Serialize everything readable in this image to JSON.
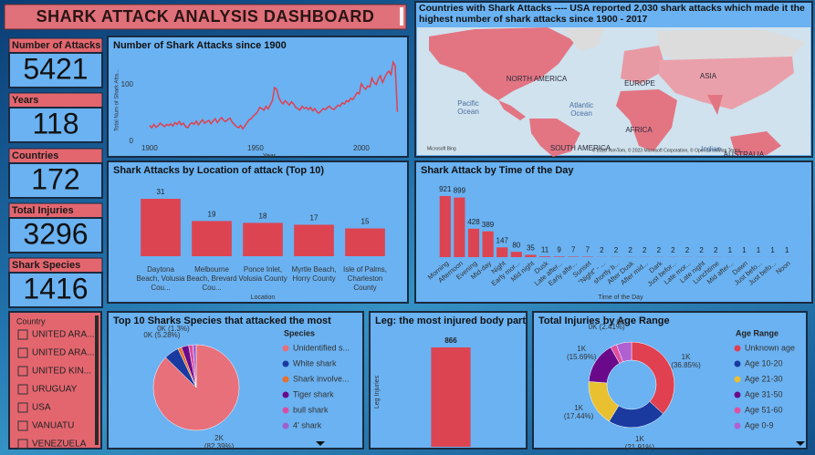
{
  "header": {
    "title": "SHARK ATTACK ANALYSIS DASHBOARD"
  },
  "kpis": [
    {
      "label": "Number of Attacks",
      "value": 5421
    },
    {
      "label": "Years",
      "value": 118
    },
    {
      "label": "Countries",
      "value": 172
    },
    {
      "label": "Total Injuries",
      "value": 3296
    },
    {
      "label": "Shark Species",
      "value": 1416
    }
  ],
  "slicer": {
    "title": "Country",
    "items": [
      "UNITED ARA...",
      "UNITED ARA...",
      "UNITED KIN...",
      "URUGUAY",
      "USA",
      "VANUATU",
      "VENEZUELA"
    ]
  },
  "map": {
    "title": "Countries with Shark Attacks ---- USA reported 2,030 shark attacks which made it the highest number of shark attacks since 1900 - 2017",
    "labels": [
      "NORTH AMERICA",
      "EUROPE",
      "ASIA",
      "AFRICA",
      "SOUTH AMERICA",
      "AUSTRALIA",
      "Pacific Ocean",
      "Atlantic Ocean",
      "Indian"
    ],
    "attribution": [
      "Microsoft Bing",
      "© 2023 TomTom, © 2023 Microsoft Corporation, © OpenStreetMap Terms"
    ]
  },
  "chart_data": [
    {
      "type": "line",
      "title": "Number of Shark Attacks since 1900",
      "x_label": "Year",
      "y_label": "Total Num of Shark Atta...",
      "color": "#e0404f",
      "x": [
        1900,
        1901,
        1902,
        1903,
        1904,
        1905,
        1906,
        1907,
        1908,
        1909,
        1910,
        1911,
        1912,
        1913,
        1914,
        1915,
        1916,
        1917,
        1918,
        1919,
        1920,
        1921,
        1922,
        1923,
        1924,
        1925,
        1926,
        1927,
        1928,
        1929,
        1930,
        1931,
        1932,
        1933,
        1934,
        1935,
        1936,
        1937,
        1938,
        1939,
        1940,
        1941,
        1942,
        1943,
        1944,
        1945,
        1946,
        1947,
        1948,
        1949,
        1950,
        1951,
        1952,
        1953,
        1954,
        1955,
        1956,
        1957,
        1958,
        1959,
        1960,
        1961,
        1962,
        1963,
        1964,
        1965,
        1966,
        1967,
        1968,
        1969,
        1970,
        1971,
        1972,
        1973,
        1974,
        1975,
        1976,
        1977,
        1978,
        1979,
        1980,
        1981,
        1982,
        1983,
        1984,
        1985,
        1986,
        1987,
        1988,
        1989,
        1990,
        1991,
        1992,
        1993,
        1994,
        1995,
        1996,
        1997,
        1998,
        1999,
        2000,
        2001,
        2002,
        2003,
        2004,
        2005,
        2006,
        2007,
        2008,
        2009,
        2010,
        2011,
        2012,
        2013,
        2014,
        2015,
        2016,
        2017
      ],
      "values": [
        28,
        24,
        30,
        25,
        27,
        32,
        29,
        26,
        30,
        28,
        31,
        27,
        33,
        30,
        35,
        29,
        32,
        26,
        24,
        30,
        33,
        30,
        36,
        29,
        34,
        38,
        32,
        35,
        37,
        31,
        36,
        40,
        33,
        38,
        42,
        37,
        35,
        39,
        41,
        34,
        30,
        26,
        24,
        28,
        22,
        27,
        33,
        38,
        40,
        45,
        48,
        52,
        60,
        58,
        55,
        62,
        57,
        65,
        72,
        95,
        92,
        78,
        70,
        66,
        72,
        68,
        64,
        70,
        66,
        60,
        58,
        55,
        62,
        58,
        60,
        56,
        60,
        54,
        58,
        52,
        50,
        54,
        58,
        56,
        60,
        62,
        58,
        56,
        60,
        64,
        62,
        68,
        66,
        72,
        70,
        76,
        74,
        80,
        86,
        84,
        102,
        96,
        92,
        98,
        96,
        112,
        104,
        100,
        110,
        116,
        104,
        112,
        120,
        124,
        118,
        140,
        134,
        52
      ],
      "xlim": [
        1894,
        2019
      ],
      "ylim": [
        0,
        145
      ],
      "xticks": [
        1900,
        1950,
        2000
      ],
      "yticks": [
        0,
        100
      ]
    },
    {
      "type": "bar",
      "title": "Shark Attacks by Location of attack (Top 10)",
      "x_label": "Location",
      "color": "#dd4452",
      "categories": [
        "Daytona Beach, Volusia Cou...",
        "Melbourne Beach, Brevard Cou...",
        "Ponce Inlet, Volusia County",
        "Myrtle Beach, Horry County",
        "Isle of Palms, Charleston County"
      ],
      "values": [
        31,
        19,
        18,
        17,
        15
      ]
    },
    {
      "type": "bar",
      "title": "Shark Attack by Time of the Day",
      "x_label": "Time of the Day",
      "color": "#dd4452",
      "categories": [
        "Morning",
        "Afternoon",
        "Evening",
        "Mid-day",
        "Night",
        "Early mor...",
        "Mid night",
        "Dusk",
        "Late after...",
        "Early afte...",
        "Sunset",
        "\"Night\" - ...",
        "shortly b...",
        "After Dusk",
        "After mid...",
        "Dark",
        "Just befor...",
        "Late mor...",
        "Late night",
        "Lunchtime",
        "Mid after...",
        "Dawn",
        "Just befo...",
        "Just befo...",
        "Noon"
      ],
      "values": [
        921,
        899,
        428,
        389,
        147,
        80,
        35,
        11,
        9,
        7,
        7,
        2,
        2,
        2,
        2,
        2,
        2,
        2,
        2,
        2,
        1,
        1,
        1,
        1,
        1
      ]
    },
    {
      "type": "pie",
      "title": "Top 10 Sharks Species that attacked the most",
      "legend_title": "Species",
      "categories": [
        "Unidentified s...",
        "White shark",
        "Shark involve...",
        "Tiger shark",
        "bull shark",
        "4' shark"
      ],
      "values": [
        82.39,
        5.28,
        1.3,
        2.6,
        1.5,
        1.2
      ],
      "value_labels": [
        "2K (82.39%)",
        "0K (5.28%)",
        "0K (1.3%)",
        null,
        null,
        null
      ],
      "colors": [
        "#e8707a",
        "#1a3aa0",
        "#e8702a",
        "#6a0a8a",
        "#d94fa0",
        "#a060d0"
      ]
    },
    {
      "type": "bar",
      "title": "Leg: the most injured body part",
      "y_label": "Leg Injuries",
      "color": "#dd4452",
      "values": [
        866
      ]
    },
    {
      "type": "donut",
      "title": "Total Injuries by Age Range",
      "legend_title": "Age Range",
      "categories": [
        "Unknown age",
        "Age 10-20",
        "Age 21-30",
        "Age 31-50",
        "Age 51-60",
        "Age 0-9"
      ],
      "values": [
        36.85,
        21.91,
        17.44,
        15.69,
        2.41,
        5.7
      ],
      "value_labels": [
        "1K (36.85%)",
        "1K (21.91%)",
        "1K (17.44%)",
        "1K (15.69%)",
        "0K (2.41%)",
        "0K"
      ],
      "colors": [
        "#e04050",
        "#1a3aa0",
        "#e8c030",
        "#6a0a8a",
        "#e050a0",
        "#b060d0"
      ]
    }
  ]
}
